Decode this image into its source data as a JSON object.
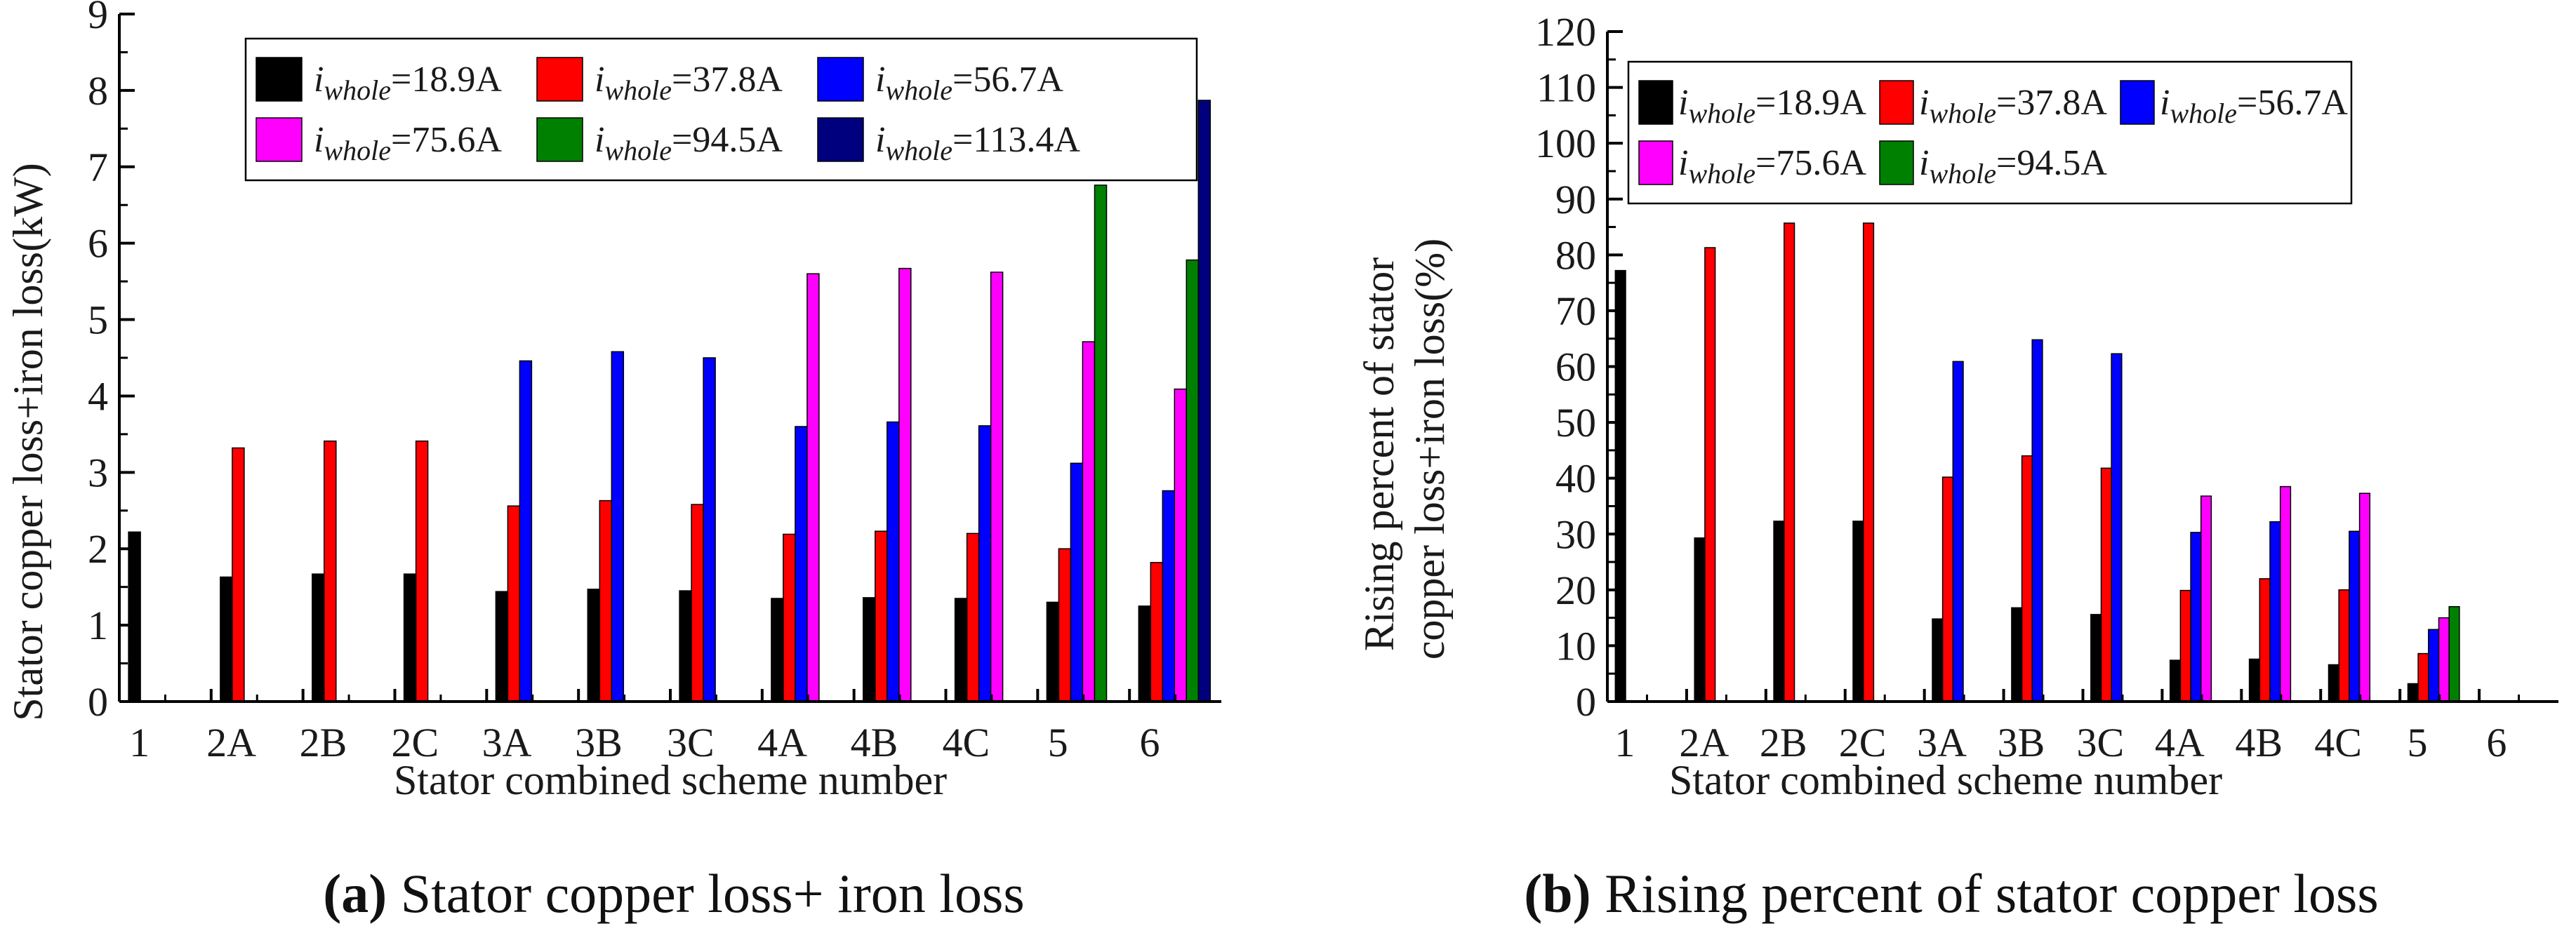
{
  "chart_data": [
    {
      "id": "a",
      "type": "bar",
      "ylabel": "Stator copper loss+iron loss(kW)",
      "xlabel": "Stator combined scheme number",
      "ylim": [
        0,
        9
      ],
      "yticks": [
        "0",
        "1",
        "2",
        "3",
        "4",
        "5",
        "6",
        "7",
        "8",
        "9"
      ],
      "categories": [
        "1",
        "2A",
        "2B",
        "2C",
        "3A",
        "3B",
        "3C",
        "4A",
        "4B",
        "4C",
        "5",
        "6"
      ],
      "series": [
        {
          "name": "i_whole=18.9A",
          "color": "#000000",
          "values": [
            2.22,
            1.63,
            1.67,
            1.67,
            1.44,
            1.47,
            1.45,
            1.35,
            1.36,
            1.35,
            1.3,
            1.25
          ]
        },
        {
          "name": "i_whole=37.8A",
          "color": "#ff0000",
          "values": [
            null,
            3.32,
            3.41,
            3.41,
            2.56,
            2.63,
            2.58,
            2.19,
            2.23,
            2.2,
            2.0,
            1.82
          ]
        },
        {
          "name": "i_whole=56.7A",
          "color": "#0000ff",
          "values": [
            null,
            null,
            null,
            null,
            4.46,
            4.58,
            4.5,
            3.6,
            3.66,
            3.61,
            3.12,
            2.76
          ]
        },
        {
          "name": "i_whole=75.6A",
          "color": "#ff00ff",
          "values": [
            null,
            null,
            null,
            null,
            null,
            null,
            null,
            5.6,
            5.67,
            5.62,
            4.71,
            4.09
          ]
        },
        {
          "name": "i_whole=94.5A",
          "color": "#008000",
          "values": [
            null,
            null,
            null,
            null,
            null,
            null,
            null,
            null,
            null,
            null,
            6.76,
            5.78
          ]
        },
        {
          "name": "i_whole=113.4A",
          "color": "#00007f",
          "values": [
            null,
            null,
            null,
            null,
            null,
            null,
            null,
            null,
            null,
            null,
            null,
            7.87
          ]
        }
      ],
      "legend_rows": [
        [
          {
            "var": "i",
            "sub": "whole",
            "val": "=18.9A",
            "color": "#000000"
          },
          {
            "var": "i",
            "sub": "whole",
            "val": "=37.8A",
            "color": "#ff0000"
          },
          {
            "var": "i",
            "sub": "whole",
            "val": "=56.7A",
            "color": "#0000ff"
          }
        ],
        [
          {
            "var": "i",
            "sub": "whole",
            "val": "=75.6A",
            "color": "#ff00ff"
          },
          {
            "var": "i",
            "sub": "whole",
            "val": "=94.5A",
            "color": "#008000"
          },
          {
            "var": "i",
            "sub": "whole",
            "val": "=113.4A",
            "color": "#00007f"
          }
        ]
      ],
      "caption_label": "(a)",
      "caption_text": " Stator copper loss+ iron loss"
    },
    {
      "id": "b",
      "type": "bar",
      "ylabel_lines": [
        "Rising percent of stator",
        "copper loss+iron loss(%)"
      ],
      "xlabel": "Stator combined scheme number",
      "ylim": [
        0,
        120
      ],
      "yticks": [
        "0",
        "10",
        "20",
        "30",
        "40",
        "50",
        "60",
        "70",
        "80",
        "90",
        "100",
        "110",
        "120"
      ],
      "categories": [
        "1",
        "2A",
        "2B",
        "2C",
        "3A",
        "3B",
        "3C",
        "4A",
        "4B",
        "4C",
        "5",
        "6"
      ],
      "series": [
        {
          "name": "i_whole=18.9A",
          "color": "#000000",
          "values": [
            77.2,
            29.3,
            32.3,
            32.3,
            14.8,
            16.8,
            15.6,
            7.4,
            7.6,
            6.6,
            3.2,
            null
          ]
        },
        {
          "name": "i_whole=37.8A",
          "color": "#ff0000",
          "values": [
            null,
            81.3,
            85.7,
            85.7,
            40.2,
            44.0,
            41.8,
            19.9,
            22.0,
            20.0,
            8.6,
            null
          ]
        },
        {
          "name": "i_whole=56.7A",
          "color": "#0000ff",
          "values": [
            null,
            null,
            null,
            null,
            60.9,
            64.8,
            62.3,
            30.3,
            32.2,
            30.5,
            12.9,
            null
          ]
        },
        {
          "name": "i_whole=75.6A",
          "color": "#ff00ff",
          "values": [
            null,
            null,
            null,
            null,
            null,
            null,
            null,
            36.8,
            38.5,
            37.3,
            15.0,
            null
          ]
        },
        {
          "name": "i_whole=94.5A",
          "color": "#008000",
          "values": [
            null,
            null,
            null,
            null,
            null,
            null,
            null,
            null,
            null,
            null,
            17.0,
            null
          ]
        }
      ],
      "legend_rows": [
        [
          {
            "var": "i",
            "sub": "whole",
            "val": "=18.9A",
            "color": "#000000"
          },
          {
            "var": "i",
            "sub": "whole",
            "val": "=37.8A",
            "color": "#ff0000"
          },
          {
            "var": "i",
            "sub": "whole",
            "val": "=56.7A",
            "color": "#0000ff"
          }
        ],
        [
          {
            "var": "i",
            "sub": "whole",
            "val": "=75.6A",
            "color": "#ff00ff"
          },
          {
            "var": "i",
            "sub": "whole",
            "val": "=94.5A",
            "color": "#008000"
          }
        ]
      ],
      "caption_label": "(b)",
      "caption_text": " Rising percent of stator copper loss"
    }
  ]
}
